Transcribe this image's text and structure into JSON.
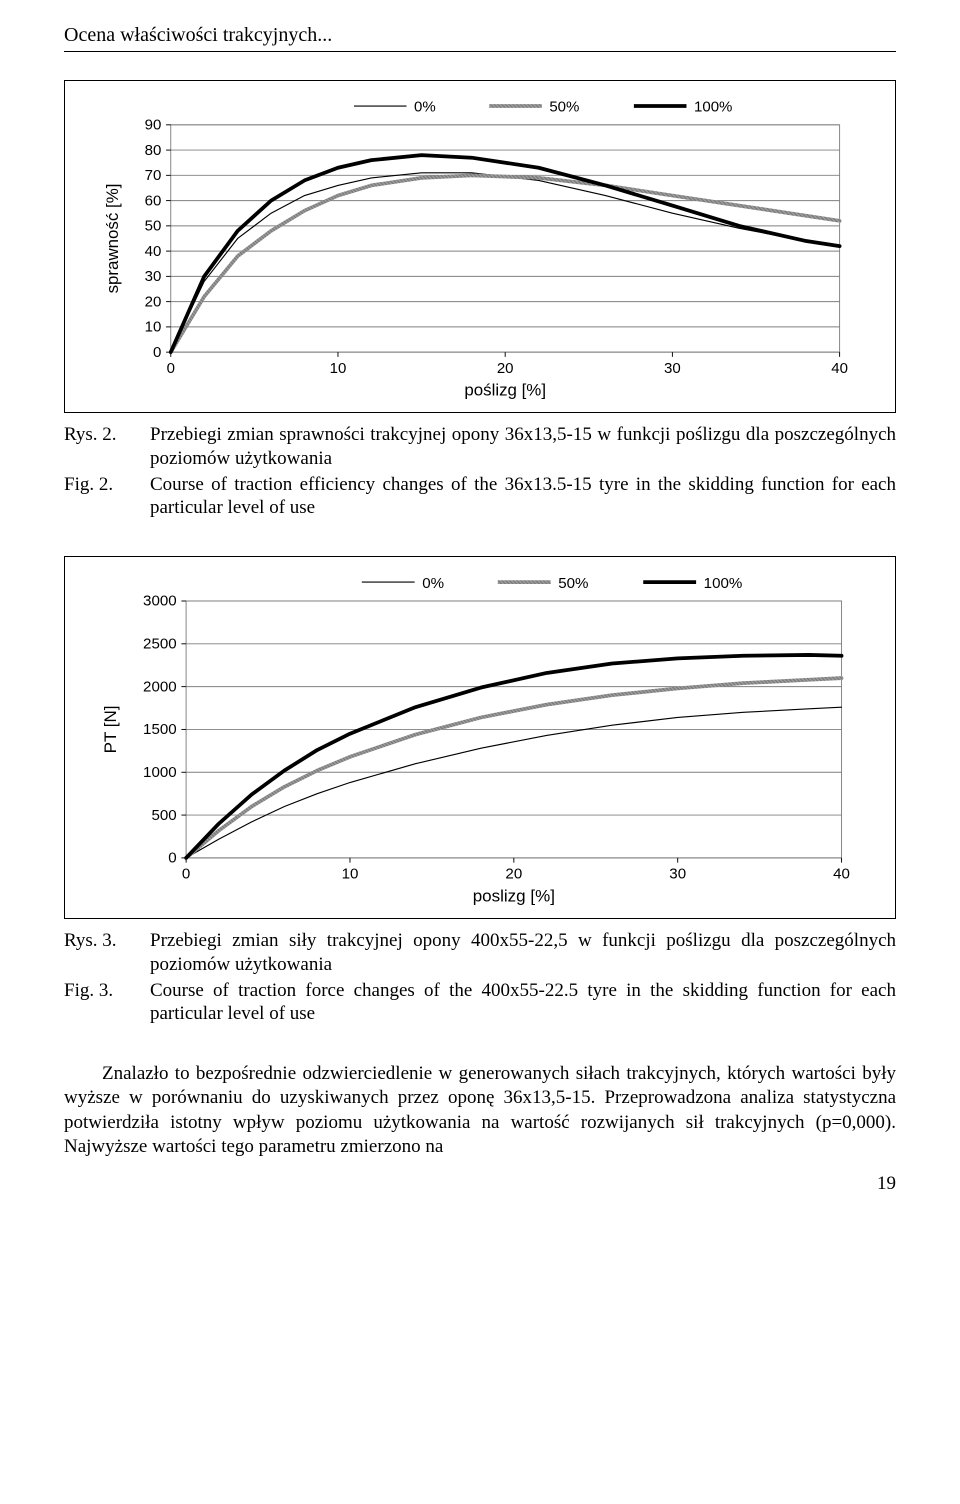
{
  "header": {
    "running_title": "Ocena właściwości trakcyjnych..."
  },
  "chart1": {
    "type": "line",
    "legend_labels": [
      "0%",
      "50%",
      "100%"
    ],
    "xlabel": "poślizg [%]",
    "ylabel": "sprawność [%]",
    "xlim": [
      0,
      40
    ],
    "ylim": [
      0,
      90
    ],
    "xticks": [
      0,
      10,
      20,
      30,
      40
    ],
    "yticks": [
      0,
      10,
      20,
      30,
      40,
      50,
      60,
      70,
      80,
      90
    ],
    "axis_fontsize": 18,
    "tick_fontsize": 16,
    "background_color": "#ffffff",
    "grid_color": "#7f7f7f",
    "plot_border_color": "#7f7f7f",
    "series": [
      {
        "name": "0%",
        "color": "#000000",
        "width": 1.2,
        "pattern": "solid",
        "x": [
          0,
          2,
          4,
          6,
          8,
          10,
          12,
          15,
          18,
          22,
          26,
          30,
          34,
          38,
          40
        ],
        "y": [
          0,
          28,
          45,
          55,
          62,
          66,
          69,
          71,
          71,
          68,
          62,
          55,
          49,
          44,
          42
        ]
      },
      {
        "name": "50%",
        "color": "#8a8a8a",
        "width": 4,
        "pattern": "hatched",
        "x": [
          0,
          2,
          4,
          6,
          8,
          10,
          12,
          15,
          18,
          22,
          26,
          30,
          34,
          38,
          40
        ],
        "y": [
          0,
          22,
          38,
          48,
          56,
          62,
          66,
          69,
          70,
          69,
          66,
          62,
          58,
          54,
          52
        ]
      },
      {
        "name": "100%",
        "color": "#000000",
        "width": 4,
        "pattern": "solid",
        "x": [
          0,
          2,
          4,
          6,
          8,
          10,
          12,
          15,
          18,
          22,
          26,
          30,
          34,
          38,
          40
        ],
        "y": [
          0,
          30,
          48,
          60,
          68,
          73,
          76,
          78,
          77,
          73,
          66,
          58,
          50,
          44,
          42
        ]
      }
    ],
    "legend_sample_widths": [
      1.2,
      4,
      4
    ],
    "legend_sample_colors": [
      "#000000",
      "#8a8a8a",
      "#000000"
    ]
  },
  "caption1": {
    "rys_key": "Rys. 2.",
    "rys_text": "Przebiegi zmian sprawności trakcyjnej opony 36x13,5-15 w funkcji poślizgu dla poszczególnych poziomów użytkowania",
    "fig_key": "Fig. 2.",
    "fig_text": "Course of traction efficiency changes of the 36x13.5-15 tyre in the skidding function for each particular level of use"
  },
  "chart2": {
    "type": "line",
    "legend_labels": [
      "0%",
      "50%",
      "100%"
    ],
    "xlabel": "poslizg [%]",
    "ylabel": "PT [N]",
    "xlim": [
      0,
      40
    ],
    "ylim": [
      0,
      3000
    ],
    "xticks": [
      0,
      10,
      20,
      30,
      40
    ],
    "yticks": [
      0,
      500,
      1000,
      1500,
      2000,
      2500,
      3000
    ],
    "axis_fontsize": 18,
    "tick_fontsize": 16,
    "background_color": "#ffffff",
    "grid_color": "#7f7f7f",
    "plot_border_color": "#7f7f7f",
    "series": [
      {
        "name": "0%",
        "color": "#000000",
        "width": 1.2,
        "pattern": "solid",
        "x": [
          0,
          2,
          4,
          6,
          8,
          10,
          14,
          18,
          22,
          26,
          30,
          34,
          38,
          40
        ],
        "y": [
          0,
          220,
          420,
          600,
          750,
          880,
          1100,
          1280,
          1430,
          1550,
          1640,
          1700,
          1740,
          1760
        ]
      },
      {
        "name": "50%",
        "color": "#8a8a8a",
        "width": 4,
        "pattern": "hatched",
        "x": [
          0,
          2,
          4,
          6,
          8,
          10,
          14,
          18,
          22,
          26,
          30,
          34,
          38,
          40
        ],
        "y": [
          0,
          320,
          600,
          830,
          1020,
          1180,
          1440,
          1640,
          1790,
          1900,
          1980,
          2040,
          2080,
          2100
        ]
      },
      {
        "name": "100%",
        "color": "#000000",
        "width": 4,
        "pattern": "solid",
        "x": [
          0,
          2,
          4,
          6,
          8,
          10,
          14,
          18,
          22,
          26,
          30,
          34,
          38,
          40
        ],
        "y": [
          0,
          400,
          740,
          1020,
          1260,
          1450,
          1760,
          1990,
          2160,
          2270,
          2330,
          2360,
          2370,
          2360
        ]
      }
    ],
    "legend_sample_widths": [
      1.2,
      4,
      4
    ],
    "legend_sample_colors": [
      "#000000",
      "#8a8a8a",
      "#000000"
    ]
  },
  "caption2": {
    "rys_key": "Rys. 3.",
    "rys_text": "Przebiegi zmian siły trakcyjnej opony 400x55-22,5 w funkcji poślizgu dla poszczególnych poziomów użytkowania",
    "fig_key": "Fig. 3.",
    "fig_text": "Course of traction force changes of the 400x55-22.5 tyre in the skidding function for each particular level of use"
  },
  "paragraph": "Znalazło to bezpośrednie odzwierciedlenie w generowanych siłach trakcyjnych, których wartości były wyższe w porównaniu do uzyskiwanych przez oponę 36x13,5-15. Przeprowadzona analiza statystyczna potwierdziła istotny wpływ poziomu użytkowania na wartość rozwijanych sił trakcyjnych (p=0,000). Najwyższe wartości tego parametru zmierzono na",
  "page_number": "19"
}
